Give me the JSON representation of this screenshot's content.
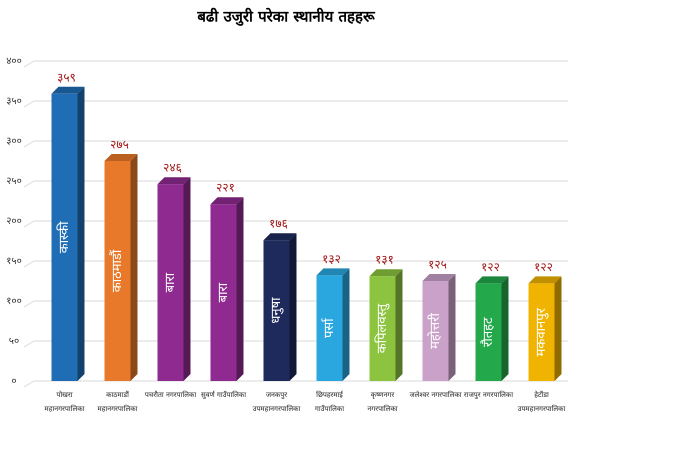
{
  "chart_data": {
    "type": "bar3d",
    "title": "बढी उजुरी परेका स्थानीय तहहरू",
    "categories": [
      [
        "पोखरा",
        "महानगरपालिका"
      ],
      [
        "काठमाडौं",
        "महानगरपालिका"
      ],
      [
        "पचरौता नगरपालिका"
      ],
      [
        "सुवर्ण गाउँपालिका"
      ],
      [
        "जनकपुर",
        "उपमहानगरपालिका"
      ],
      [
        "छिपहरमाई",
        "गाउँपालिका"
      ],
      [
        "कृष्णनगर",
        "नगरपालिका"
      ],
      [
        "जलेश्वर नगरपालिका"
      ],
      [
        "राजपुर नगरपालिका"
      ],
      [
        "हेटौंडा",
        "उपमहानगरपालिका"
      ]
    ],
    "bar_labels": [
      "कास्की",
      "काठमाडौं",
      "बारा",
      "बारा",
      "धनुषा",
      "पर्सा",
      "कपिलवस्तु",
      "महोत्तरी",
      "रौतहट",
      "मकवानपुर"
    ],
    "values": [
      359,
      275,
      246,
      221,
      176,
      132,
      131,
      125,
      122,
      122
    ],
    "value_labels": [
      "३५९",
      "२७५",
      "२४६",
      "२२१",
      "१७६",
      "१३२",
      "१३१",
      "१२५",
      "१२२",
      "१२२"
    ],
    "colors": [
      "#1f6db4",
      "#e8792b",
      "#8e2a90",
      "#8e2a90",
      "#1e2a5c",
      "#2aa7df",
      "#8cc43f",
      "#c9a1c9",
      "#23a84b",
      "#f0b400"
    ],
    "ylim": [
      0,
      400
    ],
    "yticks": [
      {
        "value": 0,
        "label": "०"
      },
      {
        "value": 50,
        "label": "५०"
      },
      {
        "value": 100,
        "label": "१००"
      },
      {
        "value": 150,
        "label": "१५०"
      },
      {
        "value": 200,
        "label": "२००"
      },
      {
        "value": 250,
        "label": "२५०"
      },
      {
        "value": 300,
        "label": "३००"
      },
      {
        "value": 350,
        "label": "३५०"
      },
      {
        "value": 400,
        "label": "४००"
      }
    ],
    "grid": true
  }
}
